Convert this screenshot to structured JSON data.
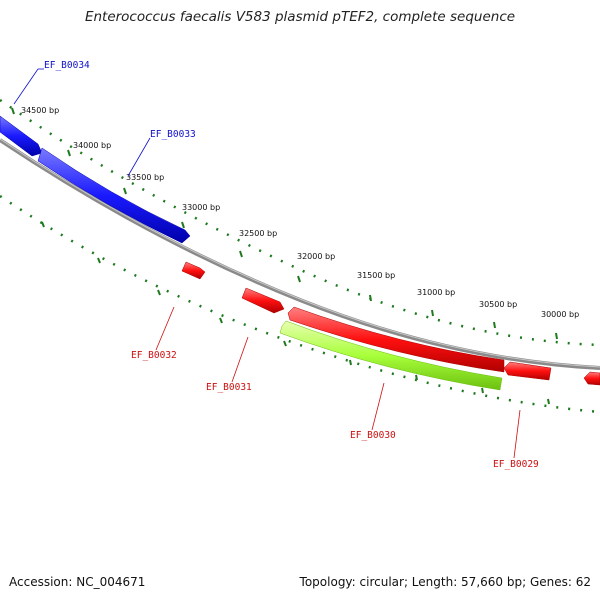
{
  "title": "Enterococcus faecalis V583 plasmid pTEF2, complete sequence",
  "footer": {
    "accession": "Accession: NC_004671",
    "summary": "Topology: circular; Length: 57,660 bp; Genes: 62"
  },
  "bp_ticks": [
    "34500 bp",
    "34000 bp",
    "33500 bp",
    "33000 bp",
    "32500 bp",
    "32000 bp",
    "31500 bp",
    "31000 bp",
    "30500 bp",
    "30000 bp"
  ],
  "genes": [
    {
      "name": "EF_B0034",
      "strand": "forward",
      "color": "#1a1aff"
    },
    {
      "name": "EF_B0033",
      "strand": "forward",
      "color": "#1a1aff"
    },
    {
      "name": "EF_B0032",
      "strand": "reverse",
      "color": "#ff1010"
    },
    {
      "name": "EF_B0031",
      "strand": "reverse",
      "color": "#ff1010"
    },
    {
      "name": "EF_B0030",
      "strand": "reverse",
      "color": "#a8ff3a"
    },
    {
      "name": "EF_B0029",
      "strand": "reverse",
      "color": "#ff1010"
    }
  ],
  "colors": {
    "backbone": "#888888",
    "tick": "#1f7a1f",
    "forward_label": "#1010cc",
    "reverse_label": "#cc1010"
  }
}
